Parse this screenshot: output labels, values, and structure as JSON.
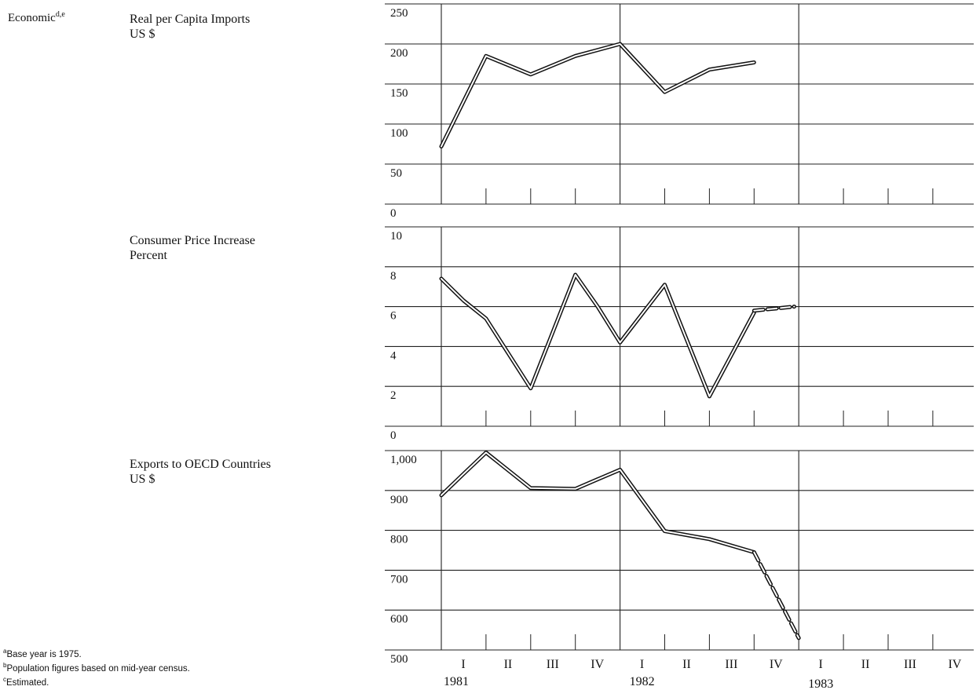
{
  "section": {
    "label": "Economic",
    "label_sup": "d,e"
  },
  "x_axis": {
    "quarters": [
      "I",
      "II",
      "III",
      "IV",
      "I",
      "II",
      "III",
      "IV",
      "I",
      "II",
      "III",
      "IV"
    ],
    "years": [
      "1981",
      "1982",
      "1983"
    ]
  },
  "chart_data": [
    {
      "type": "line",
      "title": "Real per Capita Imports",
      "ylabel": "US $",
      "ylim": [
        0,
        250
      ],
      "y_ticks": [
        "0",
        "50",
        "100",
        "150",
        "200",
        "250"
      ],
      "categories": [
        "1981-I",
        "1981-II",
        "1981-III",
        "1981-IV",
        "1982-I",
        "1982-II",
        "1982-III",
        "1982-IV"
      ],
      "x": [
        1,
        2,
        3,
        4,
        5,
        6,
        7,
        8
      ],
      "values": [
        72,
        185,
        162,
        185,
        200,
        140,
        168,
        177
      ],
      "estimated_x": [],
      "estimated_values": []
    },
    {
      "type": "line",
      "title": "Consumer Price Increase",
      "ylabel": "Percent",
      "ylim": [
        0,
        10
      ],
      "y_ticks": [
        "0",
        "2",
        "4",
        "6",
        "8",
        "10"
      ],
      "categories": [
        "1981-I",
        "1981-II",
        "1981-III",
        "1981-IV",
        "1982-I",
        "1982-II",
        "1982-III",
        "1982-IV"
      ],
      "x": [
        1,
        1.5,
        2,
        3,
        4,
        4.5,
        5,
        6,
        7,
        8
      ],
      "values": [
        7.4,
        6.3,
        5.4,
        1.9,
        7.6,
        6.0,
        4.2,
        7.1,
        1.5,
        5.7
      ],
      "estimated_x": [
        8,
        8.9
      ],
      "estimated_values": [
        5.8,
        6.0
      ]
    },
    {
      "type": "line",
      "title": "Exports to OECD Countries",
      "ylabel": "US $",
      "ylim": [
        500,
        1000
      ],
      "y_ticks": [
        "500",
        "600",
        "700",
        "800",
        "900",
        "1,000"
      ],
      "categories": [
        "1981-I",
        "1981-II",
        "1981-III",
        "1981-IV",
        "1982-I",
        "1982-II",
        "1982-III",
        "1982-IV",
        "1983-I"
      ],
      "x": [
        1,
        1.5,
        2,
        3,
        4,
        4.5,
        5,
        6,
        7,
        8
      ],
      "values": [
        888,
        942,
        995,
        906,
        904,
        928,
        952,
        798,
        778,
        745
      ],
      "estimated_x": [
        8,
        9
      ],
      "estimated_values": [
        745,
        530
      ]
    }
  ],
  "footnotes": [
    {
      "mark": "a",
      "text": "Base year is 1975."
    },
    {
      "mark": "b",
      "text": "Population figures based on mid-year census."
    },
    {
      "mark": "c",
      "text": "Estimated."
    }
  ]
}
